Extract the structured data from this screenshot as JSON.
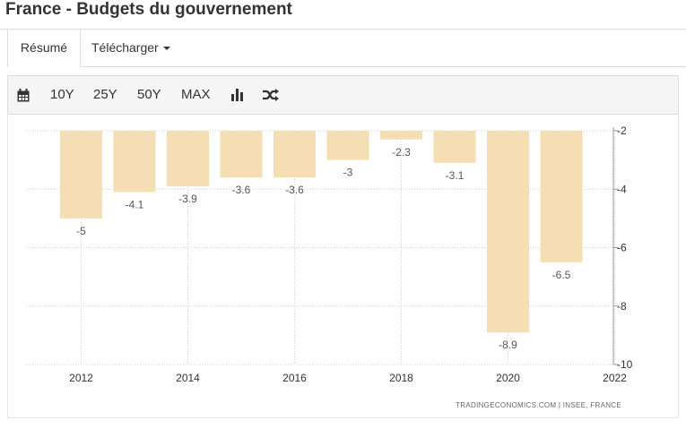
{
  "header": {
    "title": "France - Budgets du gouvernement"
  },
  "tabs": [
    {
      "label": "Résumé",
      "active": true
    },
    {
      "label": "Télécharger"
    }
  ],
  "toolbar": {
    "ranges": [
      "10Y",
      "25Y",
      "50Y",
      "MAX"
    ],
    "icons": [
      "calendar-icon",
      "bar-chart-icon",
      "shuffle-icon"
    ]
  },
  "colors": {
    "bar": "#f5deb3",
    "grid": "#cccccc",
    "text": "#333333"
  },
  "chart_data": {
    "type": "bar",
    "title": "France - Budgets du gouvernement",
    "categories": [
      "2012",
      "2013",
      "2014",
      "2015",
      "2016",
      "2017",
      "2018",
      "2019",
      "2020",
      "2021"
    ],
    "values": [
      -5,
      -4.1,
      -3.9,
      -3.6,
      -3.6,
      -3,
      -2.3,
      -3.1,
      -8.9,
      -6.5
    ],
    "data_labels": [
      "-5",
      "-4.1",
      "-3.9",
      "-3.6",
      "-3.6",
      "-3",
      "-2.3",
      "-3.1",
      "-8.9",
      "-6.5"
    ],
    "x_ticks": [
      "2012",
      "2014",
      "2016",
      "2018",
      "2020",
      "2022"
    ],
    "y_ticks": [
      "-2",
      "-4",
      "-6",
      "-8",
      "-10"
    ],
    "ylim": [
      -10,
      -2
    ],
    "y_axis_position": "right",
    "grid": true,
    "source": "TRADINGECONOMICS.COM  |  INSEE, FRANCE"
  }
}
